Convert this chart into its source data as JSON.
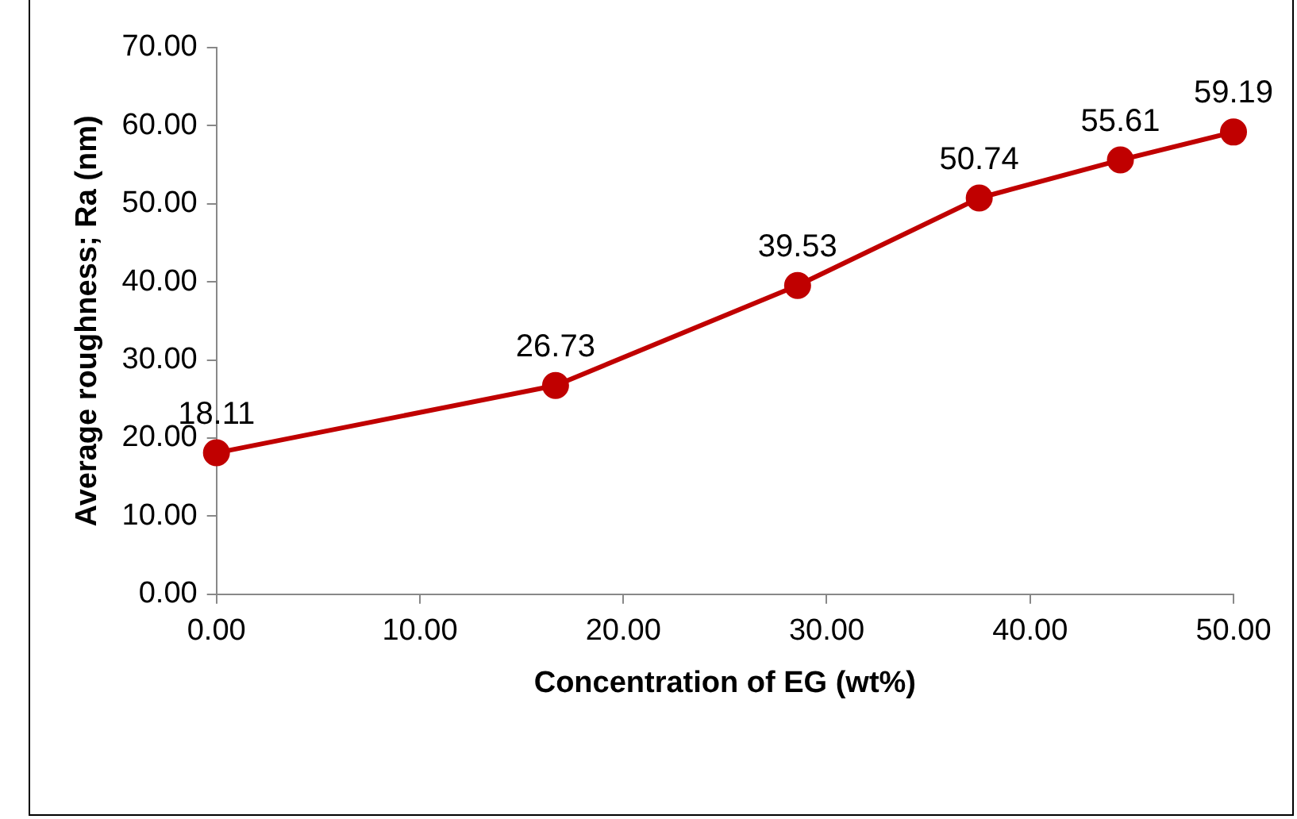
{
  "chart_data": {
    "type": "line",
    "xlabel": "Concentration of EG (wt%)",
    "ylabel": "Average roughness; Ra (nm)",
    "x": [
      0,
      16.67,
      28.57,
      37.5,
      44.44,
      50
    ],
    "series": [
      {
        "color": "#c00000",
        "values": [
          18.11,
          26.73,
          39.53,
          50.74,
          55.61,
          59.19
        ]
      }
    ],
    "xlim": [
      0,
      50
    ],
    "xticks": [
      {
        "value": 0,
        "label": "0.00"
      },
      {
        "value": 10,
        "label": "10.00"
      },
      {
        "value": 20,
        "label": "20.00"
      },
      {
        "value": 30,
        "label": "30.00"
      },
      {
        "value": 40,
        "label": "40.00"
      },
      {
        "value": 50,
        "label": "50.00"
      }
    ],
    "ylim": [
      0,
      70
    ],
    "yticks": [
      {
        "value": 0,
        "label": "0.00"
      },
      {
        "value": 10,
        "label": "10.00"
      },
      {
        "value": 20,
        "label": "20.00"
      },
      {
        "value": 30,
        "label": "30.00"
      },
      {
        "value": 40,
        "label": "40.00"
      },
      {
        "value": 50,
        "label": "50.00"
      },
      {
        "value": 60,
        "label": "60.00"
      },
      {
        "value": 70,
        "label": "70.00"
      }
    ],
    "grid": false,
    "legend": false,
    "marker": "circle",
    "line_style": "solid",
    "data_labels": true
  }
}
